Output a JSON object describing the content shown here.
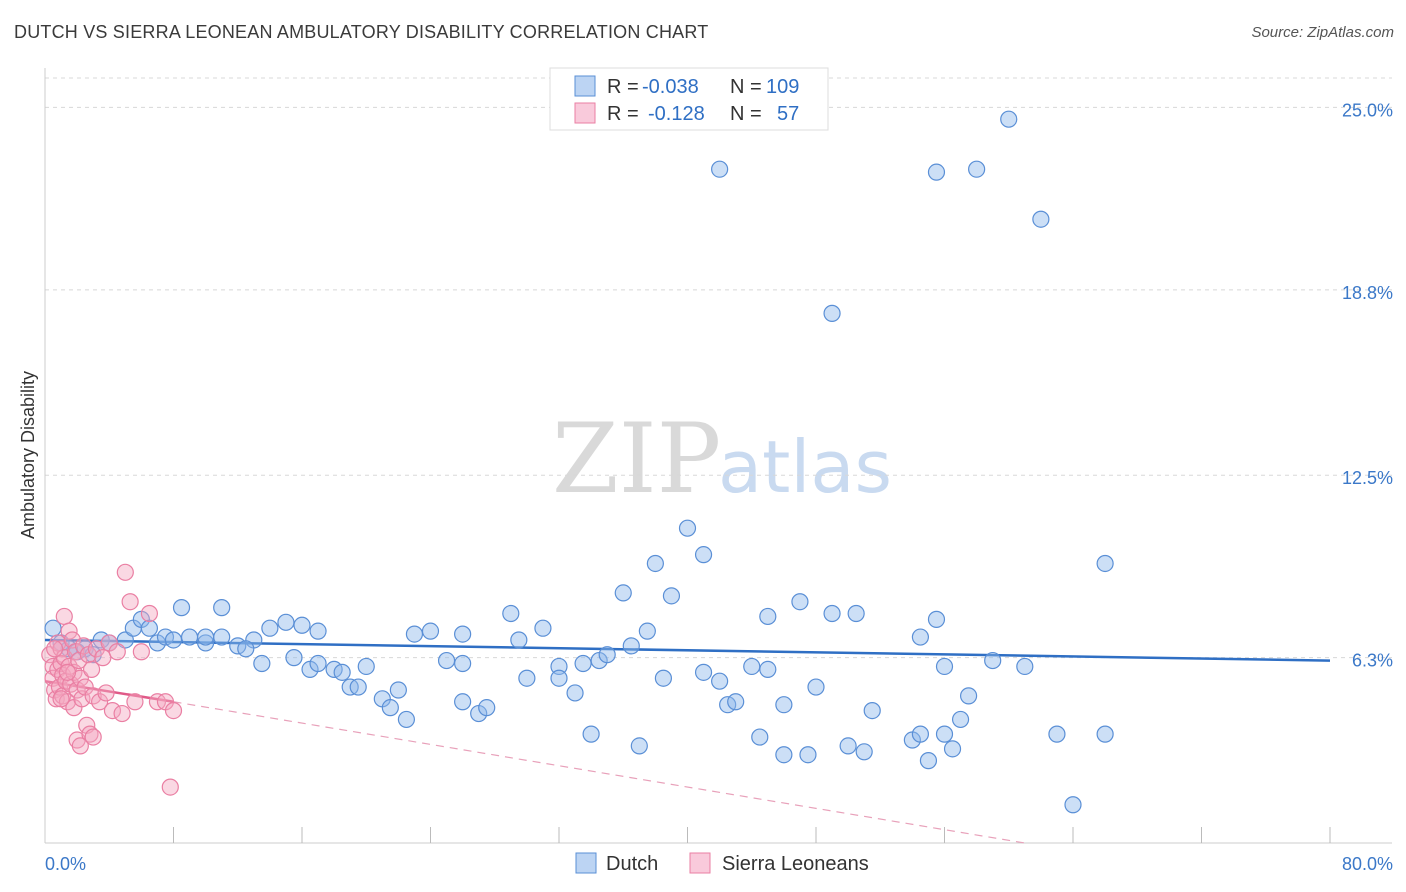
{
  "title": "DUTCH VS SIERRA LEONEAN AMBULATORY DISABILITY CORRELATION CHART",
  "source": "Source: ZipAtlas.com",
  "watermark": {
    "zip": "ZIP",
    "atlas": "atlas"
  },
  "chart_data": {
    "type": "scatter",
    "ylabel": "Ambulatory Disability",
    "xlabel": "",
    "xlim": [
      0,
      80
    ],
    "ylim": [
      0,
      26
    ],
    "x_tick_labels": [
      {
        "value": 0,
        "label": "0.0%"
      },
      {
        "value": 80,
        "label": "80.0%"
      }
    ],
    "y_tick_labels": [
      {
        "value": 6.3,
        "label": "6.3%"
      },
      {
        "value": 12.5,
        "label": "12.5%"
      },
      {
        "value": 18.8,
        "label": "18.8%"
      },
      {
        "value": 25.0,
        "label": "25.0%"
      }
    ],
    "x_minor_ticks": [
      8,
      16,
      24,
      32,
      40,
      48,
      56,
      64,
      72,
      80
    ],
    "legend": [
      {
        "series": "Dutch",
        "r_label": "R =",
        "r": "-0.038",
        "n_label": "N =",
        "n": "109",
        "color": "#8fb8ea"
      },
      {
        "series": "Sierra Leoneans",
        "r_label": "R =",
        "r": "-0.128",
        "n_label": "N =",
        "n": "57",
        "color": "#f4a9c2"
      }
    ],
    "series": [
      {
        "name": "Dutch",
        "color": "#8fb8ea",
        "stroke": "#5a8fd6",
        "trend": {
          "x0": 0,
          "y0": 6.9,
          "x1": 80,
          "y1": 6.2,
          "color": "#2f6fc4"
        },
        "points": [
          [
            0.5,
            7.3
          ],
          [
            1,
            6.8
          ],
          [
            1.5,
            6.6
          ],
          [
            2,
            6.5
          ],
          [
            2.5,
            6.6
          ],
          [
            3,
            6.4
          ],
          [
            3.5,
            6.9
          ],
          [
            4,
            6.8
          ],
          [
            5,
            6.9
          ],
          [
            5.5,
            7.3
          ],
          [
            6,
            7.6
          ],
          [
            6.5,
            7.3
          ],
          [
            7,
            6.8
          ],
          [
            7.5,
            7.0
          ],
          [
            8,
            6.9
          ],
          [
            9,
            7.0
          ],
          [
            10,
            6.8
          ],
          [
            11,
            7.0
          ],
          [
            12,
            6.7
          ],
          [
            13,
            6.9
          ],
          [
            14,
            7.3
          ],
          [
            15,
            7.5
          ],
          [
            16,
            7.4
          ],
          [
            17,
            7.2
          ],
          [
            8.5,
            8.0
          ],
          [
            11,
            8.0
          ],
          [
            10,
            7.0
          ],
          [
            12.5,
            6.6
          ],
          [
            13.5,
            6.1
          ],
          [
            15.5,
            6.3
          ],
          [
            16.5,
            5.9
          ],
          [
            17,
            6.1
          ],
          [
            18,
            5.9
          ],
          [
            18.5,
            5.8
          ],
          [
            19,
            5.3
          ],
          [
            19.5,
            5.3
          ],
          [
            20,
            6.0
          ],
          [
            21,
            4.9
          ],
          [
            21.5,
            4.6
          ],
          [
            22,
            5.2
          ],
          [
            22.5,
            4.2
          ],
          [
            23,
            7.1
          ],
          [
            24,
            7.2
          ],
          [
            25,
            6.2
          ],
          [
            26,
            6.1
          ],
          [
            26,
            4.8
          ],
          [
            26,
            7.1
          ],
          [
            27,
            4.4
          ],
          [
            27.5,
            4.6
          ],
          [
            29,
            7.8
          ],
          [
            29.5,
            6.9
          ],
          [
            30,
            5.6
          ],
          [
            31,
            7.3
          ],
          [
            32,
            6.0
          ],
          [
            32,
            5.6
          ],
          [
            33,
            5.1
          ],
          [
            33.5,
            6.1
          ],
          [
            34,
            3.7
          ],
          [
            34.5,
            6.2
          ],
          [
            35,
            6.4
          ],
          [
            36,
            8.5
          ],
          [
            36.5,
            6.7
          ],
          [
            37,
            3.3
          ],
          [
            37.5,
            7.2
          ],
          [
            38,
            9.5
          ],
          [
            38.5,
            5.6
          ],
          [
            39,
            8.4
          ],
          [
            40,
            10.7
          ],
          [
            41,
            5.8
          ],
          [
            41,
            9.8
          ],
          [
            42,
            5.5
          ],
          [
            42.5,
            4.7
          ],
          [
            43,
            4.8
          ],
          [
            44,
            6.0
          ],
          [
            44.5,
            3.6
          ],
          [
            45,
            5.9
          ],
          [
            45,
            7.7
          ],
          [
            46,
            3.0
          ],
          [
            46,
            4.7
          ],
          [
            47,
            8.2
          ],
          [
            47.5,
            3.0
          ],
          [
            48,
            5.3
          ],
          [
            49,
            7.8
          ],
          [
            50,
            3.3
          ],
          [
            50.5,
            7.8
          ],
          [
            51,
            3.1
          ],
          [
            51.5,
            4.5
          ],
          [
            54,
            3.5
          ],
          [
            54.5,
            3.7
          ],
          [
            54.5,
            7.0
          ],
          [
            55,
            2.8
          ],
          [
            55.5,
            7.6
          ],
          [
            56,
            6.0
          ],
          [
            56,
            3.7
          ],
          [
            56.5,
            3.2
          ],
          [
            57,
            4.2
          ],
          [
            57.5,
            5.0
          ],
          [
            59,
            6.2
          ],
          [
            61,
            6.0
          ],
          [
            63,
            3.7
          ],
          [
            64,
            1.3
          ],
          [
            66,
            3.7
          ],
          [
            66,
            9.5
          ],
          [
            49,
            18.0
          ],
          [
            55.5,
            22.8
          ],
          [
            58,
            22.9
          ],
          [
            42,
            22.9
          ],
          [
            62,
            21.2
          ],
          [
            60,
            24.6
          ]
        ]
      },
      {
        "name": "Sierra Leoneans",
        "color": "#f4a9c2",
        "stroke": "#ea7fa3",
        "trend": {
          "x0": 0,
          "y0": 5.5,
          "x1": 8,
          "y1": 4.8,
          "color": "#e05a88"
        },
        "trend_dashed": {
          "x0": 8,
          "y0": 4.8,
          "x1": 61,
          "y1": 0.0,
          "color": "#e8a1ba"
        },
        "points": [
          [
            0.3,
            6.4
          ],
          [
            0.5,
            6.0
          ],
          [
            0.5,
            5.6
          ],
          [
            0.6,
            5.2
          ],
          [
            0.7,
            4.9
          ],
          [
            0.8,
            6.8
          ],
          [
            0.8,
            5.9
          ],
          [
            0.9,
            5.3
          ],
          [
            1.0,
            6.6
          ],
          [
            1.0,
            6.1
          ],
          [
            1.1,
            5.7
          ],
          [
            1.1,
            5.0
          ],
          [
            1.2,
            7.7
          ],
          [
            1.2,
            6.3
          ],
          [
            1.3,
            5.5
          ],
          [
            1.4,
            4.8
          ],
          [
            1.5,
            7.2
          ],
          [
            1.5,
            6.0
          ],
          [
            1.6,
            5.4
          ],
          [
            1.7,
            6.9
          ],
          [
            1.8,
            5.8
          ],
          [
            1.8,
            4.6
          ],
          [
            1.9,
            6.5
          ],
          [
            2.0,
            5.2
          ],
          [
            2.0,
            3.5
          ],
          [
            2.1,
            6.2
          ],
          [
            2.2,
            5.6
          ],
          [
            2.3,
            4.9
          ],
          [
            2.4,
            6.7
          ],
          [
            2.5,
            5.3
          ],
          [
            2.6,
            4.0
          ],
          [
            2.7,
            6.4
          ],
          [
            2.8,
            3.7
          ],
          [
            2.9,
            5.9
          ],
          [
            3.0,
            5.0
          ],
          [
            3.2,
            6.6
          ],
          [
            3.4,
            4.8
          ],
          [
            3.6,
            6.3
          ],
          [
            3.8,
            5.1
          ],
          [
            4.0,
            6.8
          ],
          [
            4.2,
            4.5
          ],
          [
            4.5,
            6.5
          ],
          [
            4.8,
            4.4
          ],
          [
            5.0,
            9.2
          ],
          [
            5.3,
            8.2
          ],
          [
            5.6,
            4.8
          ],
          [
            6.0,
            6.5
          ],
          [
            6.5,
            7.8
          ],
          [
            7.0,
            4.8
          ],
          [
            7.5,
            4.8
          ],
          [
            8.0,
            4.5
          ],
          [
            7.8,
            1.9
          ],
          [
            1.0,
            4.9
          ],
          [
            1.4,
            5.8
          ],
          [
            2.2,
            3.3
          ],
          [
            3.0,
            3.6
          ],
          [
            0.6,
            6.6
          ]
        ]
      }
    ]
  }
}
